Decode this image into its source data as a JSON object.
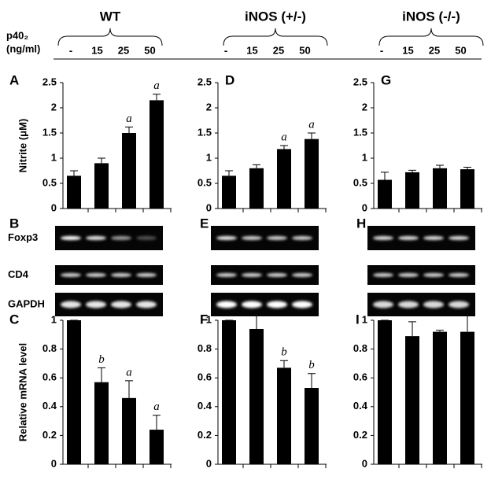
{
  "header": {
    "groups": [
      "WT",
      "iNOS (+/-)",
      "iNOS (-/-)"
    ],
    "dose_label": "p40₂",
    "dose_unit": "(ng/ml)"
  },
  "gels": {
    "panels": [
      "B",
      "E",
      "H"
    ],
    "rows": [
      "Foxp3",
      "CD4",
      "GAPDH"
    ]
  },
  "chart_data": [
    {
      "type": "bar",
      "panel": "A",
      "y_label": "Nitrite (μM)",
      "categories": [
        "-",
        "15",
        "25",
        "50"
      ],
      "values": [
        0.65,
        0.9,
        1.5,
        2.15
      ],
      "errors": [
        0.1,
        0.1,
        0.12,
        0.12
      ],
      "value_annotations": [
        null,
        null,
        "a",
        "a"
      ],
      "color": "#000000",
      "ylim": [
        0,
        2.5
      ],
      "yticks": [
        0,
        0.5,
        1,
        1.5,
        2,
        2.5
      ]
    },
    {
      "type": "bar",
      "panel": "D",
      "categories": [
        "-",
        "15",
        "25",
        "50"
      ],
      "values": [
        0.65,
        0.8,
        1.18,
        1.38
      ],
      "errors": [
        0.1,
        0.07,
        0.07,
        0.12
      ],
      "value_annotations": [
        null,
        null,
        "a",
        "a"
      ],
      "color": "#000000",
      "ylim": [
        0,
        2.5
      ],
      "yticks": [
        0,
        0.5,
        1,
        1.5,
        2,
        2.5
      ]
    },
    {
      "type": "bar",
      "panel": "G",
      "categories": [
        "-",
        "15",
        "25",
        "50"
      ],
      "values": [
        0.57,
        0.72,
        0.8,
        0.78
      ],
      "errors": [
        0.15,
        0.04,
        0.06,
        0.04
      ],
      "color": "#000000",
      "ylim": [
        0,
        2.5
      ],
      "yticks": [
        0,
        0.5,
        1,
        1.5,
        2,
        2.5
      ]
    },
    {
      "type": "bar",
      "panel": "C",
      "y_label": "Relative mRNA level",
      "values": [
        1,
        0.57,
        0.46,
        0.24
      ],
      "errors": [
        0,
        0.1,
        0.12,
        0.1
      ],
      "value_annotations": [
        null,
        "b",
        "a",
        "a"
      ],
      "color": "#000000",
      "ylim": [
        0,
        1
      ],
      "yticks": [
        0,
        0.2,
        0.4,
        0.6,
        0.8,
        1
      ]
    },
    {
      "type": "bar",
      "panel": "F",
      "values": [
        1,
        0.94,
        0.67,
        0.53
      ],
      "errors": [
        0,
        0.1,
        0.05,
        0.1
      ],
      "value_annotations": [
        null,
        null,
        "b",
        "b"
      ],
      "color": "#000000",
      "ylim": [
        0,
        1
      ],
      "yticks": [
        0,
        0.2,
        0.4,
        0.6,
        0.8,
        1
      ]
    },
    {
      "type": "bar",
      "panel": "I",
      "values": [
        1,
        0.89,
        0.92,
        0.92
      ],
      "errors": [
        0,
        0.1,
        0.01,
        0.12
      ],
      "color": "#000000",
      "ylim": [
        0,
        1
      ],
      "yticks": [
        0,
        0.2,
        0.4,
        0.6,
        0.8,
        1
      ]
    }
  ]
}
